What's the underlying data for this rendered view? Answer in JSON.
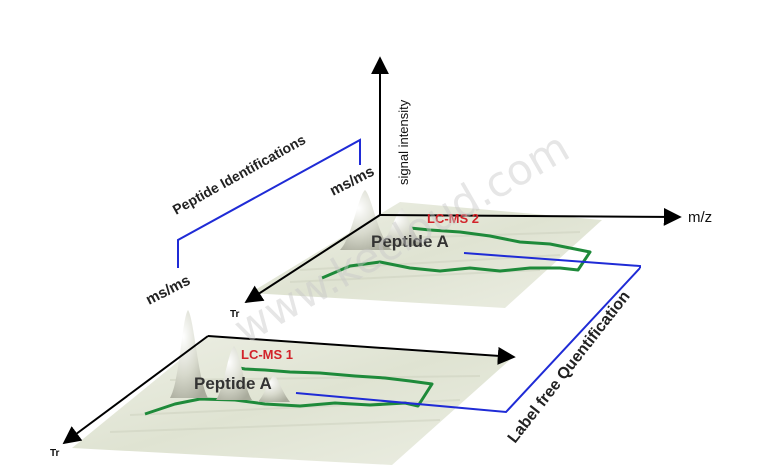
{
  "axes": {
    "signal": "signal intensity",
    "mz": "m/z",
    "tr_top": "Tr",
    "tr_bottom": "Tr"
  },
  "panels": {
    "top": {
      "title": "LC-MS 2",
      "peptide": "Peptide A"
    },
    "bottom": {
      "title": "LC-MS 1",
      "peptide": "Peptide A"
    }
  },
  "annotations": {
    "identifications": "Peptide Identifications",
    "msms_left": "ms/ms",
    "msms_right": "ms/ms",
    "quantification": "Label free Quentification"
  },
  "watermark": "www.kecloud.com",
  "colors": {
    "plane": "#e2e6d6",
    "trace": "#1e8a3a",
    "link": "#1f2bd6",
    "title": "#d2232a"
  }
}
